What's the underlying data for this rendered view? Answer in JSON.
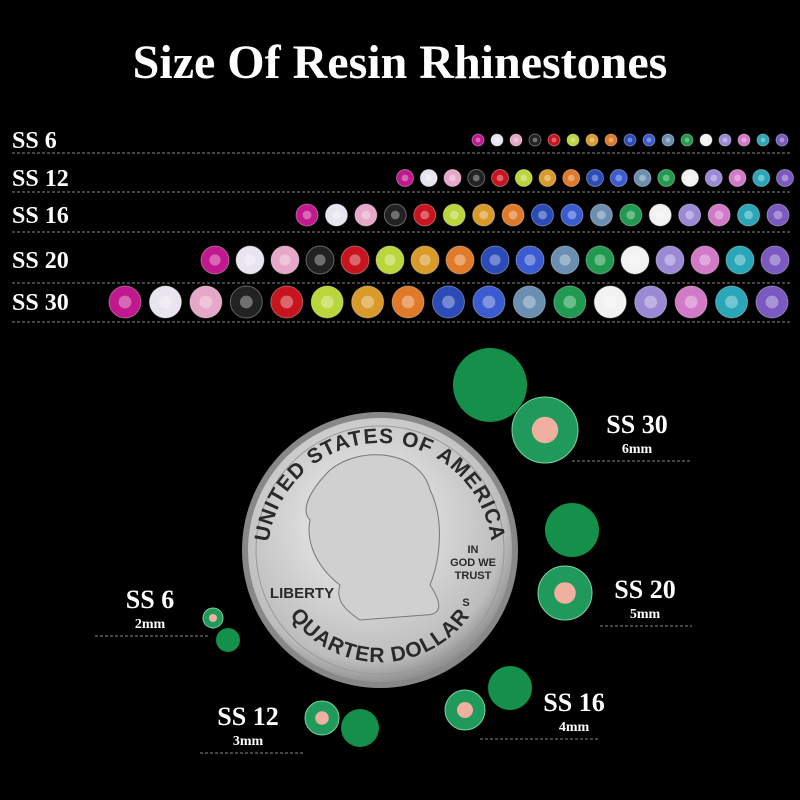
{
  "header": {
    "title": "Size Of Resin Rhinestones"
  },
  "rows": [
    {
      "label": "SS 6"
    },
    {
      "label": "SS 12"
    },
    {
      "label": "SS 16"
    },
    {
      "label": "SS 20"
    },
    {
      "label": "SS 30"
    }
  ],
  "coin": {
    "top": "UNITED STATES OF AMERICA",
    "motto": [
      "IN",
      "GOD WE",
      "TRUST"
    ],
    "left": "LIBERTY",
    "mint": "S",
    "bottom": "QUARTER DOLLAR"
  },
  "callouts": [
    {
      "label": "SS 30",
      "size": "6mm"
    },
    {
      "label": "SS 20",
      "size": "5mm"
    },
    {
      "label": "SS 6",
      "size": "2mm"
    },
    {
      "label": "SS 12",
      "size": "3mm"
    },
    {
      "label": "SS 16",
      "size": "4mm"
    }
  ]
}
